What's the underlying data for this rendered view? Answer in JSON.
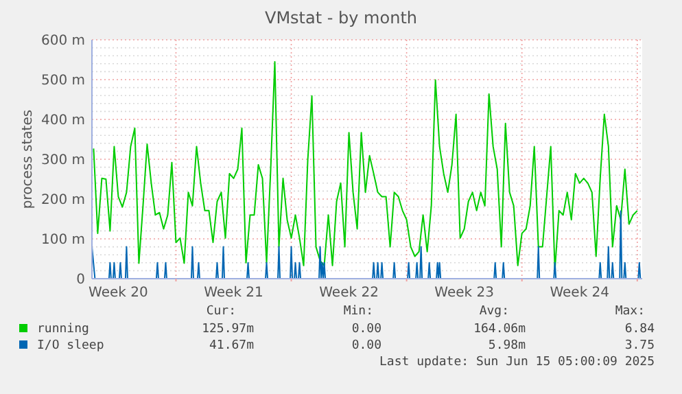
{
  "chart_data": {
    "type": "line",
    "title": "VMstat - by month",
    "ylabel": "process states",
    "xlim": [
      "2025-05-12T21:36",
      "2025-06-15T07:12"
    ],
    "xticks": [
      {
        "value": "2025-05-14T12:00",
        "label": "Week 20"
      },
      {
        "value": "2025-05-18",
        "label": null
      },
      {
        "value": "2025-05-21T12:00",
        "label": "Week 21"
      },
      {
        "value": "2025-05-25",
        "label": null
      },
      {
        "value": "2025-05-28T12:00",
        "label": "Week 22"
      },
      {
        "value": "2025-06-01",
        "label": null
      },
      {
        "value": "2025-06-04T12:00",
        "label": "Week 23"
      },
      {
        "value": "2025-06-08",
        "label": null
      },
      {
        "value": "2025-06-11T12:00",
        "label": "Week 24"
      },
      {
        "value": "2025-06-15",
        "label": null
      }
    ],
    "ylim": [
      0,
      600
    ],
    "yticks": [
      0,
      {
        "value": 20,
        "label": null
      },
      {
        "value": 40,
        "label": null
      },
      {
        "value": 60,
        "label": null
      },
      {
        "value": 80,
        "label": null
      },
      {
        "value": 100,
        "label": "100 m"
      },
      {
        "value": 120,
        "label": null
      },
      {
        "value": 140,
        "label": null
      },
      {
        "value": 160,
        "label": null
      },
      {
        "value": 180,
        "label": null
      },
      {
        "value": 200,
        "label": "200 m"
      },
      {
        "value": 220,
        "label": null
      },
      {
        "value": 240,
        "label": null
      },
      {
        "value": 260,
        "label": null
      },
      {
        "value": 280,
        "label": null
      },
      {
        "value": 300,
        "label": "300 m"
      },
      {
        "value": 320,
        "label": null
      },
      {
        "value": 340,
        "label": null
      },
      {
        "value": 360,
        "label": null
      },
      {
        "value": 380,
        "label": null
      },
      {
        "value": 400,
        "label": "400 m"
      },
      {
        "value": 420,
        "label": null
      },
      {
        "value": 440,
        "label": null
      },
      {
        "value": 460,
        "label": null
      },
      {
        "value": 480,
        "label": null
      },
      {
        "value": 500,
        "label": "500 m"
      },
      {
        "value": 520,
        "label": null
      },
      {
        "value": 540,
        "label": null
      },
      {
        "value": 560,
        "label": null
      },
      {
        "value": 580,
        "label": null
      },
      {
        "value": 600,
        "label": "600 m"
      }
    ],
    "grid": true,
    "legend": "bottom",
    "line_style": "solid",
    "annotations": [
      "Cur:",
      "Min:",
      "Avg:",
      "Max:",
      "125.97m",
      "0.00",
      "164.06m",
      "6.84",
      "41.67m",
      "0.00",
      "5.98m",
      "3.75",
      "Last update: Sun Jun 15 05:00:09 2025"
    ],
    "series": [
      {
        "name": "running",
        "color": "#00cc00",
        "x": [
          "2025-05-13T00:00",
          "2025-05-13T06:00",
          "2025-05-13T12:00",
          "2025-05-13T18:00",
          "2025-05-14T00:00",
          "2025-05-14T06:00",
          "2025-05-14T12:00",
          "2025-05-14T18:00",
          "2025-05-15T00:00",
          "2025-05-15T06:00",
          "2025-05-15T12:00",
          "2025-05-15T18:00",
          "2025-05-16T00:00",
          "2025-05-16T06:00",
          "2025-05-16T12:00",
          "2025-05-16T18:00",
          "2025-05-17T00:00",
          "2025-05-17T06:00",
          "2025-05-17T12:00",
          "2025-05-17T18:00",
          "2025-05-18T00:00",
          "2025-05-18T06:00",
          "2025-05-18T12:00",
          "2025-05-18T18:00",
          "2025-05-19T00:00",
          "2025-05-19T06:00",
          "2025-05-19T12:00",
          "2025-05-19T18:00",
          "2025-05-20T00:00",
          "2025-05-20T06:00",
          "2025-05-20T12:00",
          "2025-05-20T18:00",
          "2025-05-21T00:00",
          "2025-05-21T06:00",
          "2025-05-21T12:00",
          "2025-05-21T18:00",
          "2025-05-22T00:00",
          "2025-05-22T06:00",
          "2025-05-22T12:00",
          "2025-05-22T18:00",
          "2025-05-23T00:00",
          "2025-05-23T06:00",
          "2025-05-23T12:00",
          "2025-05-23T18:00",
          "2025-05-24T00:00",
          "2025-05-24T06:00",
          "2025-05-24T12:00",
          "2025-05-24T18:00",
          "2025-05-25T00:00",
          "2025-05-25T06:00",
          "2025-05-25T12:00",
          "2025-05-25T18:00",
          "2025-05-26T00:00",
          "2025-05-26T06:00",
          "2025-05-26T12:00",
          "2025-05-26T18:00",
          "2025-05-27T00:00",
          "2025-05-27T06:00",
          "2025-05-27T12:00",
          "2025-05-27T18:00",
          "2025-05-28T00:00",
          "2025-05-28T06:00",
          "2025-05-28T12:00",
          "2025-05-28T18:00",
          "2025-05-29T00:00",
          "2025-05-29T06:00",
          "2025-05-29T12:00",
          "2025-05-29T18:00",
          "2025-05-30T00:00",
          "2025-05-30T06:00",
          "2025-05-30T12:00",
          "2025-05-30T18:00",
          "2025-05-31T00:00",
          "2025-05-31T06:00",
          "2025-05-31T12:00",
          "2025-05-31T18:00",
          "2025-06-01T00:00",
          "2025-06-01T06:00",
          "2025-06-01T12:00",
          "2025-06-01T18:00",
          "2025-06-02T00:00",
          "2025-06-02T06:00",
          "2025-06-02T12:00",
          "2025-06-02T18:00",
          "2025-06-03T00:00",
          "2025-06-03T06:00",
          "2025-06-03T12:00",
          "2025-06-03T18:00",
          "2025-06-04T00:00",
          "2025-06-04T06:00",
          "2025-06-04T12:00",
          "2025-06-04T18:00",
          "2025-06-05T00:00",
          "2025-06-05T06:00",
          "2025-06-05T12:00",
          "2025-06-05T18:00",
          "2025-06-06T00:00",
          "2025-06-06T06:00",
          "2025-06-06T12:00",
          "2025-06-06T18:00",
          "2025-06-07T00:00",
          "2025-06-07T06:00",
          "2025-06-07T12:00",
          "2025-06-07T18:00",
          "2025-06-08T00:00",
          "2025-06-08T06:00",
          "2025-06-08T12:00",
          "2025-06-08T18:00",
          "2025-06-09T00:00",
          "2025-06-09T06:00",
          "2025-06-09T12:00",
          "2025-06-09T18:00",
          "2025-06-10T00:00",
          "2025-06-10T06:00",
          "2025-06-10T12:00",
          "2025-06-10T18:00",
          "2025-06-11T00:00",
          "2025-06-11T06:00",
          "2025-06-11T12:00",
          "2025-06-11T18:00",
          "2025-06-12T00:00",
          "2025-06-12T06:00",
          "2025-06-12T12:00",
          "2025-06-12T18:00",
          "2025-06-13T00:00",
          "2025-06-13T06:00",
          "2025-06-13T12:00",
          "2025-06-13T18:00",
          "2025-06-14T00:00",
          "2025-06-14T06:00",
          "2025-06-14T12:00",
          "2025-06-14T18:00",
          "2025-06-15T00:00"
        ],
        "values": [
          327,
          114,
          252,
          250,
          120,
          332,
          206,
          180,
          217,
          332,
          378,
          39,
          183,
          338,
          240,
          160,
          166,
          125,
          160,
          292,
          91,
          102,
          39,
          217,
          183,
          332,
          240,
          171,
          171,
          91,
          194,
          217,
          102,
          264,
          252,
          275,
          378,
          40,
          160,
          160,
          286,
          252,
          40,
          275,
          545,
          80,
          252,
          148,
          102,
          160,
          102,
          33,
          298,
          459,
          80,
          45,
          33,
          160,
          33,
          194,
          240,
          80,
          367,
          217,
          125,
          367,
          217,
          309,
          264,
          217,
          206,
          206,
          80,
          217,
          206,
          171,
          148,
          80,
          56,
          68,
          160,
          68,
          183,
          499,
          332,
          264,
          217,
          286,
          413,
          102,
          125,
          194,
          217,
          171,
          217,
          183,
          464,
          332,
          275,
          80,
          390,
          217,
          183,
          33,
          114,
          125,
          183,
          332,
          80,
          80,
          206,
          332,
          22,
          171,
          160,
          217,
          148,
          264,
          240,
          252,
          240,
          217,
          56,
          252,
          413,
          332,
          80,
          183,
          148,
          275,
          137,
          160,
          171
        ]
      },
      {
        "name": "I/O sleep",
        "color": "#0066b3",
        "x": [
          "2025-05-12T21:36",
          "2025-05-13T02:00",
          "2025-05-13T22:30",
          "2025-05-14T00:00",
          "2025-05-14T01:30",
          "2025-05-14T04:30",
          "2025-05-14T06:00",
          "2025-05-14T07:30",
          "2025-05-14T13:30",
          "2025-05-14T15:00",
          "2025-05-14T16:30",
          "2025-05-14T22:30",
          "2025-05-15T00:00",
          "2025-05-15T01:30",
          "2025-05-16T19:30",
          "2025-05-16T21:00",
          "2025-05-16T22:30",
          "2025-05-17T07:30",
          "2025-05-17T09:00",
          "2025-05-17T10:30",
          "2025-05-18T22:30",
          "2025-05-19T00:00",
          "2025-05-19T01:30",
          "2025-05-19T07:30",
          "2025-05-19T09:00",
          "2025-05-19T10:30",
          "2025-05-20T10:30",
          "2025-05-20T12:00",
          "2025-05-20T13:30",
          "2025-05-20T19:30",
          "2025-05-20T21:00",
          "2025-05-20T22:30",
          "2025-05-22T07:30",
          "2025-05-22T09:00",
          "2025-05-22T10:30",
          "2025-05-23T10:30",
          "2025-05-23T12:00",
          "2025-05-23T13:30",
          "2025-05-24T04:30",
          "2025-05-24T06:00",
          "2025-05-24T07:30",
          "2025-05-24T22:30",
          "2025-05-25T00:00",
          "2025-05-25T01:30",
          "2025-05-25T04:30",
          "2025-05-25T06:00",
          "2025-05-25T07:30",
          "2025-05-25T10:30",
          "2025-05-25T12:00",
          "2025-05-25T13:30",
          "2025-05-26T16:30",
          "2025-05-26T18:00",
          "2025-05-26T19:30",
          "2025-05-26T21:00",
          "2025-05-26T22:30",
          "2025-05-27T00:00",
          "2025-05-27T01:30",
          "2025-05-29T22:30",
          "2025-05-30T00:00",
          "2025-05-30T01:30",
          "2025-05-30T04:30",
          "2025-05-30T06:00",
          "2025-05-30T07:30",
          "2025-05-30T10:30",
          "2025-05-30T12:00",
          "2025-05-30T13:30",
          "2025-05-31T04:30",
          "2025-05-31T06:00",
          "2025-05-31T07:30",
          "2025-06-01T01:30",
          "2025-06-01T03:00",
          "2025-06-01T04:30",
          "2025-06-01T13:30",
          "2025-06-01T15:00",
          "2025-06-01T16:30",
          "2025-06-01T19:30",
          "2025-06-01T21:00",
          "2025-06-01T22:30",
          "2025-06-02T07:30",
          "2025-06-02T09:00",
          "2025-06-02T10:30",
          "2025-06-02T19:30",
          "2025-06-02T21:00",
          "2025-06-02T22:30",
          "2025-06-03T00:00",
          "2025-06-03T01:30",
          "2025-06-06T07:30",
          "2025-06-06T09:00",
          "2025-06-06T10:30",
          "2025-06-06T19:30",
          "2025-06-06T21:00",
          "2025-06-06T22:30",
          "2025-06-08T22:30",
          "2025-06-09T00:00",
          "2025-06-09T01:30",
          "2025-06-09T22:30",
          "2025-06-10T00:00",
          "2025-06-10T01:30",
          "2025-06-12T16:30",
          "2025-06-12T18:00",
          "2025-06-12T19:30",
          "2025-06-13T04:30",
          "2025-06-13T06:00",
          "2025-06-13T07:30",
          "2025-06-13T10:30",
          "2025-06-13T12:00",
          "2025-06-13T13:30",
          "2025-06-13T22:30",
          "2025-06-14T00:00",
          "2025-06-14T01:30",
          "2025-06-14T04:30",
          "2025-06-14T06:00",
          "2025-06-14T07:30",
          "2025-06-15T01:30",
          "2025-06-15T03:00",
          "2025-06-15T04:30"
        ],
        "values": [
          80,
          0,
          0,
          40,
          0,
          0,
          40,
          0,
          0,
          40,
          0,
          0,
          80,
          0,
          0,
          40,
          0,
          0,
          40,
          0,
          0,
          80,
          0,
          0,
          40,
          0,
          0,
          40,
          0,
          0,
          80,
          0,
          0,
          40,
          0,
          0,
          40,
          0,
          0,
          80,
          0,
          0,
          80,
          0,
          0,
          40,
          0,
          0,
          40,
          0,
          0,
          80,
          0,
          40,
          0,
          40,
          0,
          0,
          40,
          0,
          0,
          40,
          0,
          0,
          40,
          0,
          0,
          40,
          0,
          0,
          40,
          0,
          0,
          40,
          0,
          0,
          80,
          0,
          0,
          40,
          0,
          0,
          40,
          0,
          40,
          0,
          0,
          40,
          0,
          0,
          40,
          0,
          0,
          80,
          0,
          0,
          40,
          0,
          0,
          40,
          0,
          0,
          80,
          0,
          0,
          40,
          0,
          0,
          170,
          0,
          0,
          40,
          0,
          0,
          40,
          0
        ]
      }
    ]
  }
}
